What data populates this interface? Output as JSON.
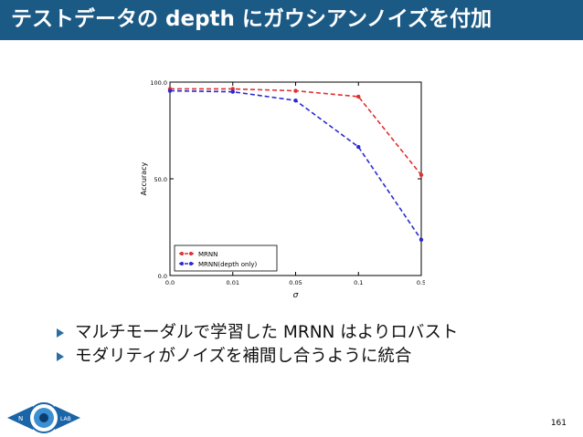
{
  "header": {
    "title": "テストデータの depth にガウシアンノイズを付加"
  },
  "chart_data": {
    "type": "line",
    "categories": [
      "0.0",
      "0.01",
      "0.05",
      "0.1",
      "0.5"
    ],
    "xlabel": "σ",
    "ylabel": "Accuracy",
    "ylim": [
      0,
      100
    ],
    "yticks": [
      "0.0",
      "50.0",
      "100.0"
    ],
    "grid": false,
    "legend_position": "lower-left",
    "series": [
      {
        "name": "MRNN",
        "color": "#e03030",
        "values": [
          96.5,
          96.5,
          95.5,
          92.5,
          52.0
        ]
      },
      {
        "name": "MRNN(depth only)",
        "color": "#2a2ad0",
        "values": [
          95.5,
          95.0,
          90.5,
          66.5,
          18.5
        ]
      }
    ]
  },
  "bullets": [
    {
      "text": "マルチモーダルで学習した MRNN はよりロバスト"
    },
    {
      "text": "モダリティがノイズを補間し合うように統合"
    }
  ],
  "logo": {
    "left_text": "N",
    "right_text": "LAB"
  },
  "footer": {
    "page_number": "161"
  },
  "colors": {
    "header_bg": "#1c5a86",
    "bullet": "#2a6fa3"
  }
}
